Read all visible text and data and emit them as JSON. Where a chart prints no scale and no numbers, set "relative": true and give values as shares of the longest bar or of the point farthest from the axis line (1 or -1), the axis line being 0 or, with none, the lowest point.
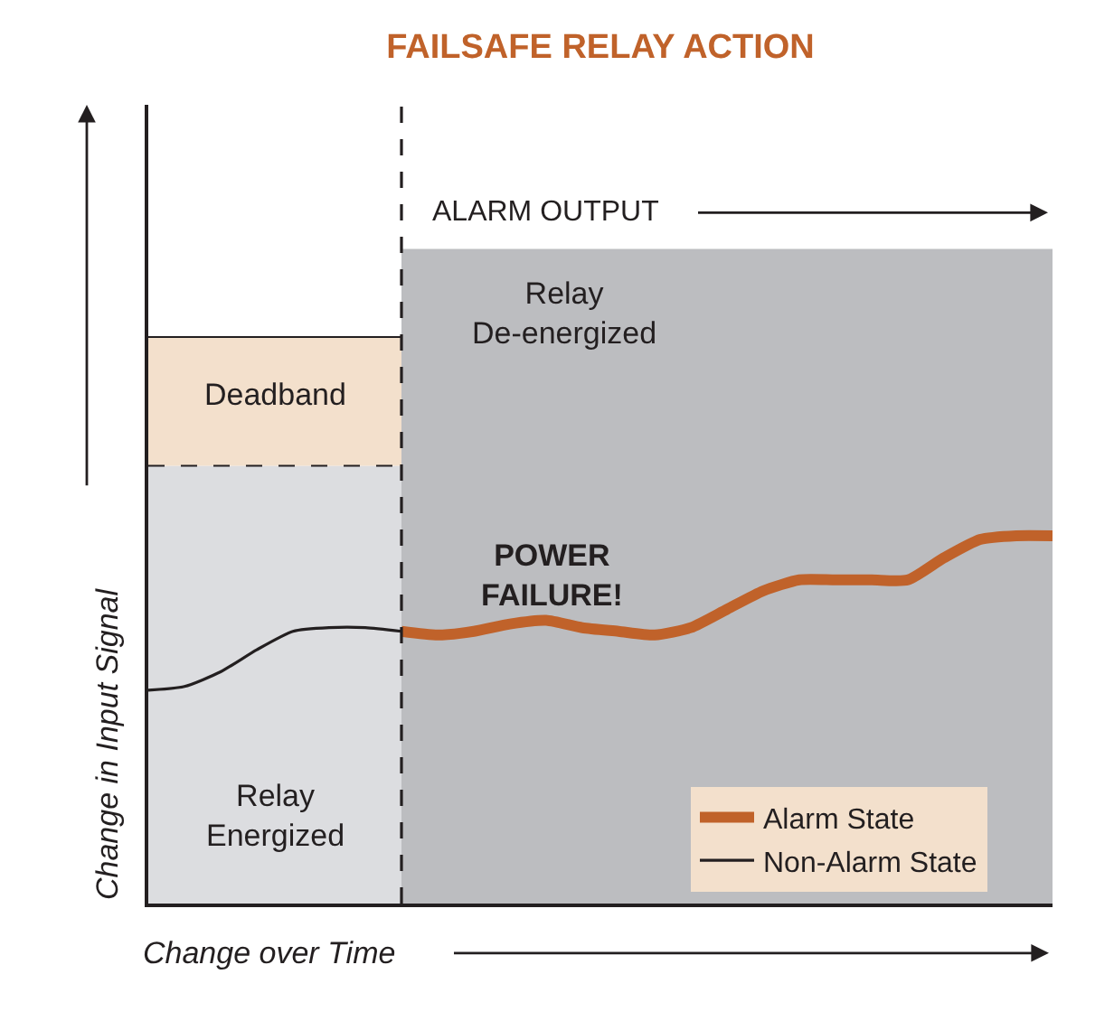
{
  "chart_data": {
    "type": "line",
    "relative": true,
    "title": "FAILSAFE RELAY ACTION",
    "xlabel": "Change over Time",
    "ylabel": "Change in Input Signal",
    "categories": [
      null,
      null,
      null,
      null,
      null,
      null,
      null,
      null,
      null,
      null,
      null,
      null,
      null,
      null,
      null,
      null,
      null,
      null,
      null,
      null,
      null,
      null,
      null,
      null,
      null,
      null
    ],
    "series": [
      {
        "name": "Alarm State",
        "color": "#c0622a",
        "values": [
          null,
          null,
          null,
          null,
          null,
          null,
          null,
          0.74,
          0.73,
          0.74,
          0.76,
          0.77,
          0.75,
          0.74,
          0.73,
          0.75,
          0.8,
          0.85,
          0.88,
          0.88,
          0.88,
          0.88,
          0.94,
          0.99,
          1,
          1
        ]
      },
      {
        "name": "Non-Alarm State",
        "color": "#231f20",
        "values": [
          0.58,
          0.59,
          0.63,
          0.69,
          0.74,
          0.75,
          0.75,
          0.74,
          null,
          null,
          null,
          null,
          null,
          null,
          null,
          null,
          null,
          null,
          null,
          null,
          null,
          null,
          null,
          null,
          null,
          null
        ]
      }
    ],
    "bands": [
      {
        "axis": "y",
        "from": 0,
        "to": 1.19,
        "label": "Relay Energized",
        "color": "#dcdde0"
      },
      {
        "axis": "y",
        "from": 1.19,
        "to": 1.54,
        "label": "Deadband",
        "color": "#f3e0cc"
      },
      {
        "axis": "y",
        "from": 0,
        "to": 1.78,
        "label": "Relay De-energized",
        "color": "#bcbdc0"
      }
    ],
    "annotations": [
      "ALARM OUTPUT",
      "POWER FAILURE!"
    ],
    "legend": "bottom right",
    "marker": "none"
  }
}
